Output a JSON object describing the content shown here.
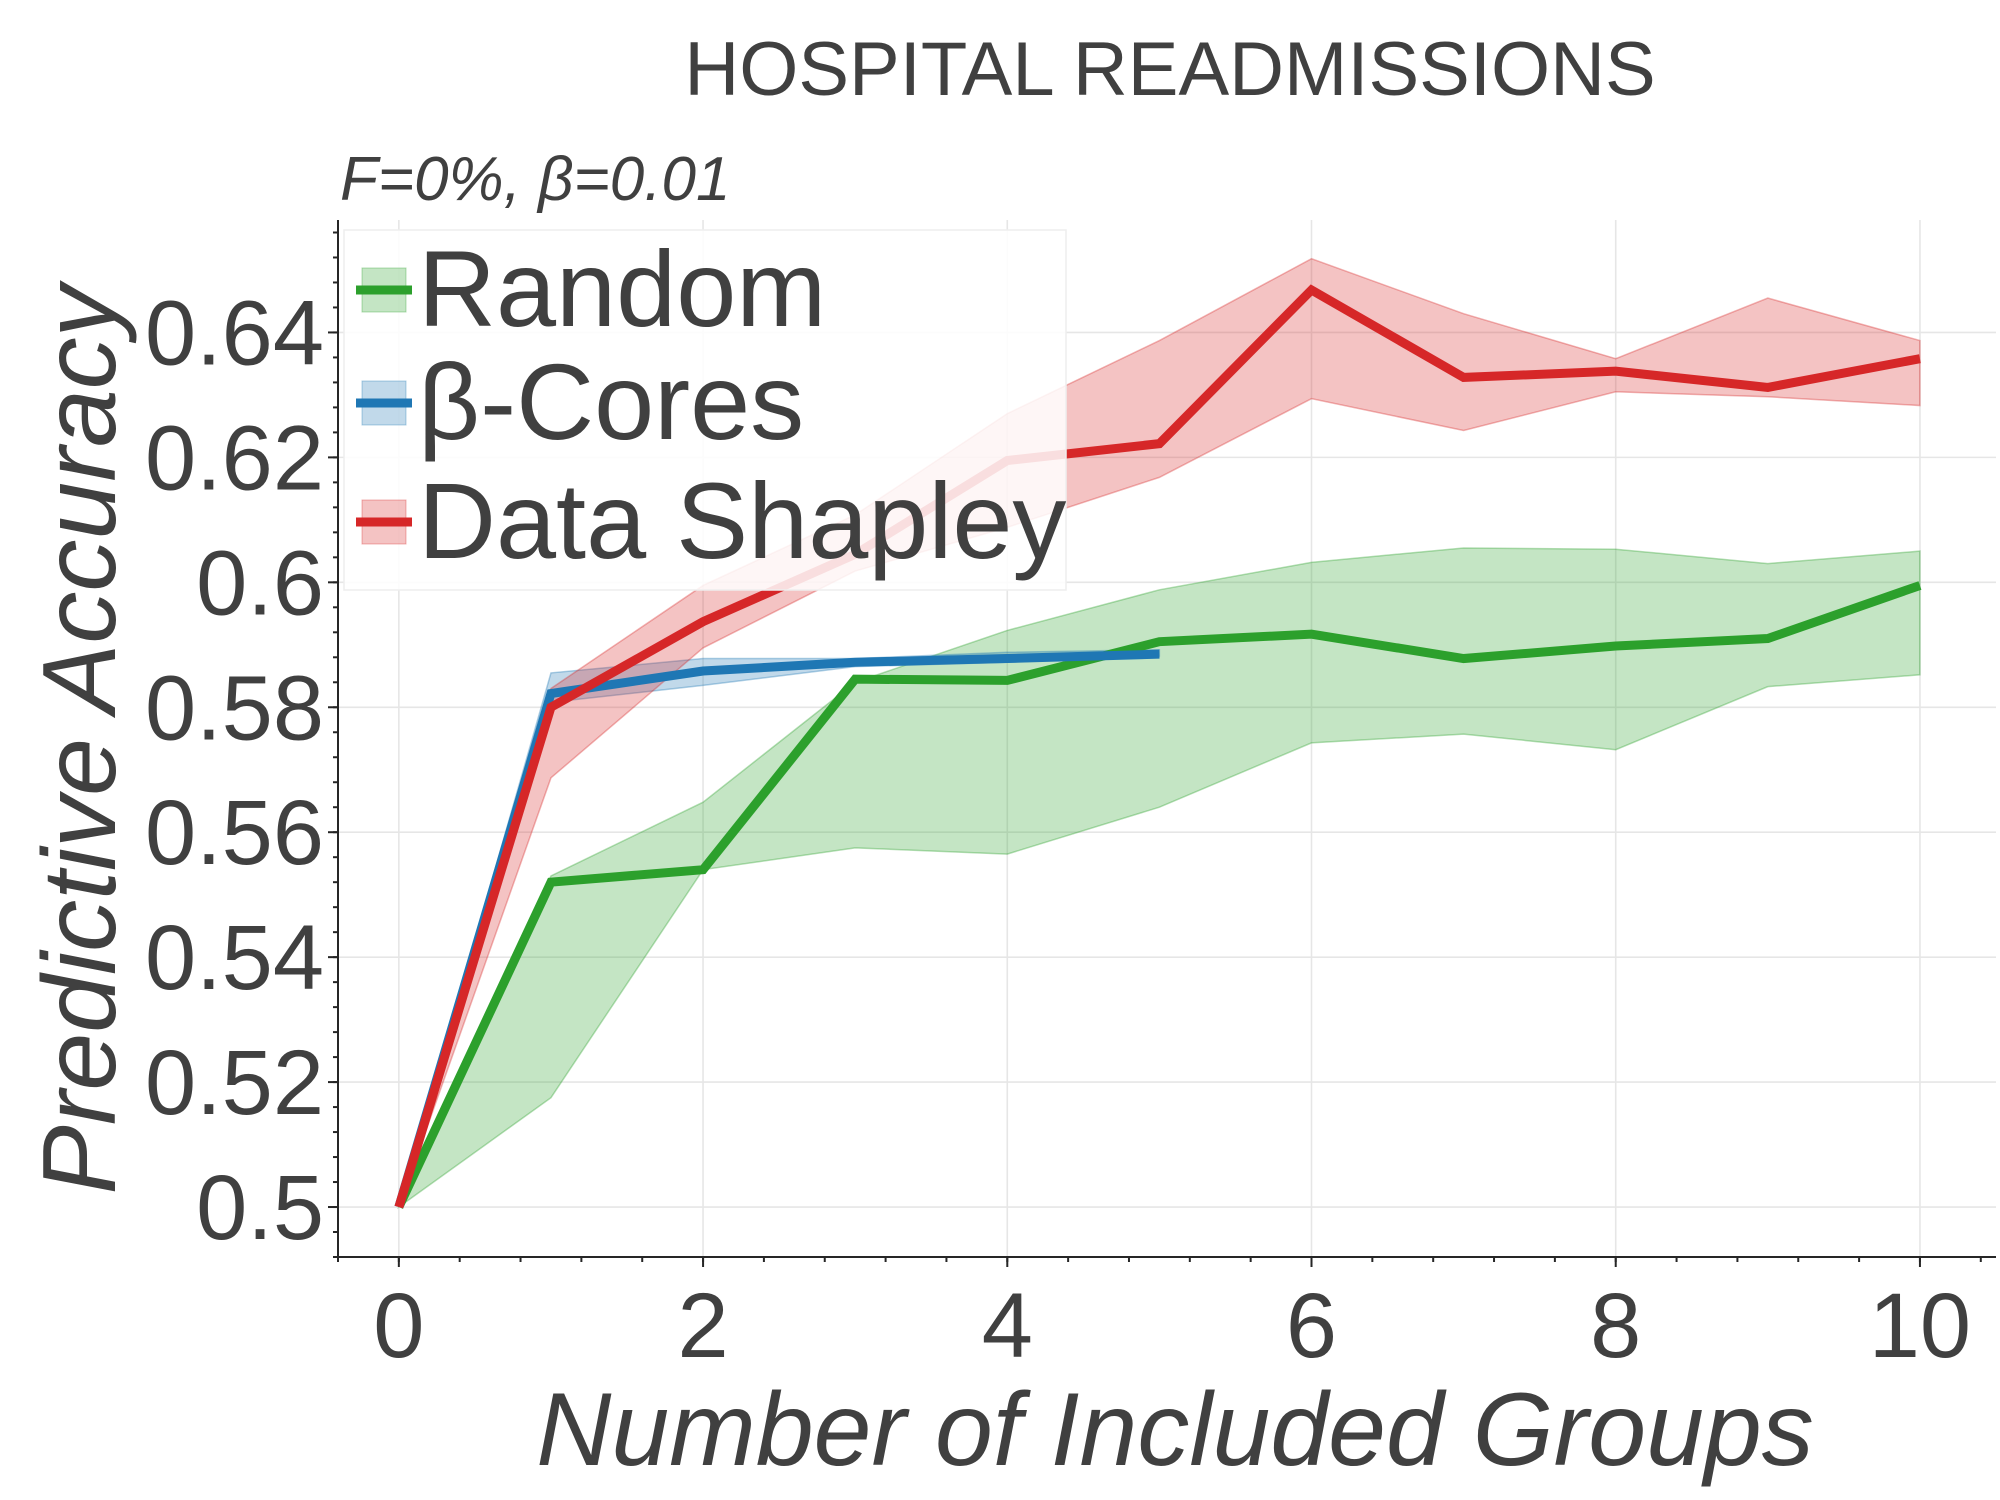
{
  "chart_data": {
    "type": "line",
    "title": "HOSPITAL READMISSIONS",
    "subtitle": "F=0%,  β=0.01",
    "xlabel": "Number of Included Groups",
    "ylabel": "Predictive Accuracy",
    "xlim": [
      -0.4,
      10.5
    ],
    "ylim": [
      0.492,
      0.658
    ],
    "xticks": [
      0,
      2,
      4,
      6,
      8,
      10
    ],
    "yticks": [
      0.5,
      0.52,
      0.54,
      0.56,
      0.58,
      0.6,
      0.62,
      0.64
    ],
    "ytick_labels": [
      "0.5",
      "0.52",
      "0.54",
      "0.56",
      "0.58",
      "0.6",
      "0.62",
      "0.64"
    ],
    "xtick_labels": [
      "0",
      "2",
      "4",
      "6",
      "8",
      "10"
    ],
    "grid": true,
    "legend_position": "top-left",
    "series": [
      {
        "name": "Random",
        "color": "#2ca02c",
        "fill": "#2ca02c",
        "x": [
          0,
          1,
          2,
          3,
          4,
          5,
          6,
          7,
          8,
          9,
          10
        ],
        "y": [
          0.5,
          0.552,
          0.554,
          0.5845,
          0.5843,
          0.5905,
          0.5917,
          0.5878,
          0.5898,
          0.591,
          0.5995
        ],
        "lower": [
          0.5,
          0.5175,
          0.554,
          0.5575,
          0.5565,
          0.564,
          0.5743,
          0.5757,
          0.5732,
          0.5833,
          0.5852
        ],
        "upper": [
          0.5,
          0.553,
          0.5648,
          0.584,
          0.5923,
          0.5988,
          0.6032,
          0.6055,
          0.6053,
          0.603,
          0.605
        ]
      },
      {
        "name": "β-Cores",
        "color": "#1f77b4",
        "fill": "#1f77b4",
        "x": [
          0,
          1,
          2,
          3,
          4,
          5
        ],
        "y": [
          0.5,
          0.5822,
          0.5858,
          0.5872,
          0.5878,
          0.5885
        ],
        "lower": [
          0.5,
          0.5808,
          0.5835,
          0.5865,
          0.5872,
          0.5882
        ],
        "upper": [
          0.5,
          0.5855,
          0.5878,
          0.5878,
          0.5888,
          0.5892
        ]
      },
      {
        "name": "Data Shapley",
        "color": "#d62728",
        "fill": "#d62728",
        "x": [
          0,
          1,
          2,
          3,
          4,
          5,
          6,
          7,
          8,
          9,
          10
        ],
        "y": [
          0.5,
          0.58,
          0.5937,
          0.6045,
          0.6195,
          0.6222,
          0.6468,
          0.6328,
          0.6338,
          0.6312,
          0.6358
        ],
        "lower": [
          0.5,
          0.5687,
          0.5895,
          0.6018,
          0.6088,
          0.6168,
          0.6294,
          0.6243,
          0.6305,
          0.6297,
          0.6283
        ],
        "upper": [
          0.5,
          0.583,
          0.5995,
          0.6108,
          0.627,
          0.6387,
          0.6518,
          0.643,
          0.6358,
          0.6455,
          0.6387
        ]
      }
    ]
  }
}
